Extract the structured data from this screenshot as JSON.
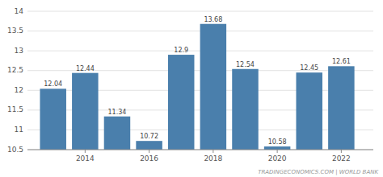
{
  "chart_data": {
    "type": "bar",
    "x": [
      2013,
      2014,
      2015,
      2016,
      2017,
      2018,
      2019,
      2020,
      2021,
      2022
    ],
    "values": [
      12.04,
      12.44,
      11.34,
      10.72,
      12.9,
      13.68,
      12.54,
      10.58,
      12.45,
      12.61
    ],
    "color": "#4a7fac",
    "xlim": [
      2012.2,
      2023.0
    ],
    "xticks": [
      2014,
      2016,
      2018,
      2020,
      2022
    ],
    "ylim": [
      10.5,
      14.0
    ],
    "yticks": [
      10.5,
      11,
      11.5,
      12,
      12.5,
      13,
      13.5,
      14
    ],
    "grid": true,
    "data_labels": true,
    "annotations": [
      "TRADINGECONOMICS.COM | WORLD BANK"
    ]
  }
}
